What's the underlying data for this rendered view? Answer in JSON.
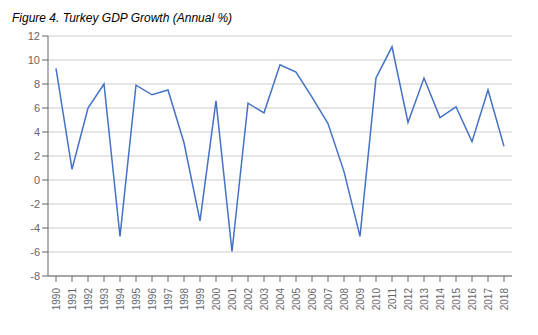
{
  "chart_data": {
    "type": "line",
    "title": "Figure 4. Turkey GDP Growth (Annual %)",
    "x": [
      1990,
      1991,
      1992,
      1993,
      1994,
      1995,
      1996,
      1997,
      1998,
      1999,
      2000,
      2001,
      2002,
      2003,
      2004,
      2005,
      2006,
      2007,
      2008,
      2009,
      2010,
      2011,
      2012,
      2013,
      2014,
      2015,
      2016,
      2017,
      2018
    ],
    "values": [
      9.3,
      0.9,
      6.0,
      8.0,
      -4.7,
      7.9,
      7.1,
      7.5,
      3.1,
      -3.4,
      6.6,
      -5.96,
      6.4,
      5.6,
      9.6,
      9.0,
      6.9,
      4.7,
      0.7,
      -4.7,
      8.5,
      11.1,
      4.8,
      8.5,
      5.2,
      6.1,
      3.2,
      7.5,
      2.8
    ],
    "color": "#4472C4",
    "xlim": [
      1989.5,
      2018.5
    ],
    "xticks": [
      1990,
      1991,
      1992,
      1993,
      1994,
      1995,
      1996,
      1997,
      1998,
      1999,
      2000,
      2001,
      2002,
      2003,
      2004,
      2005,
      2006,
      2007,
      2008,
      2009,
      2010,
      2011,
      2012,
      2013,
      2014,
      2015,
      2016,
      2017,
      2018
    ],
    "ylim": [
      -8,
      12
    ],
    "yticks": [
      -8,
      -6,
      -4,
      -2,
      0,
      2,
      4,
      6,
      8,
      10,
      12
    ],
    "grid": true
  }
}
